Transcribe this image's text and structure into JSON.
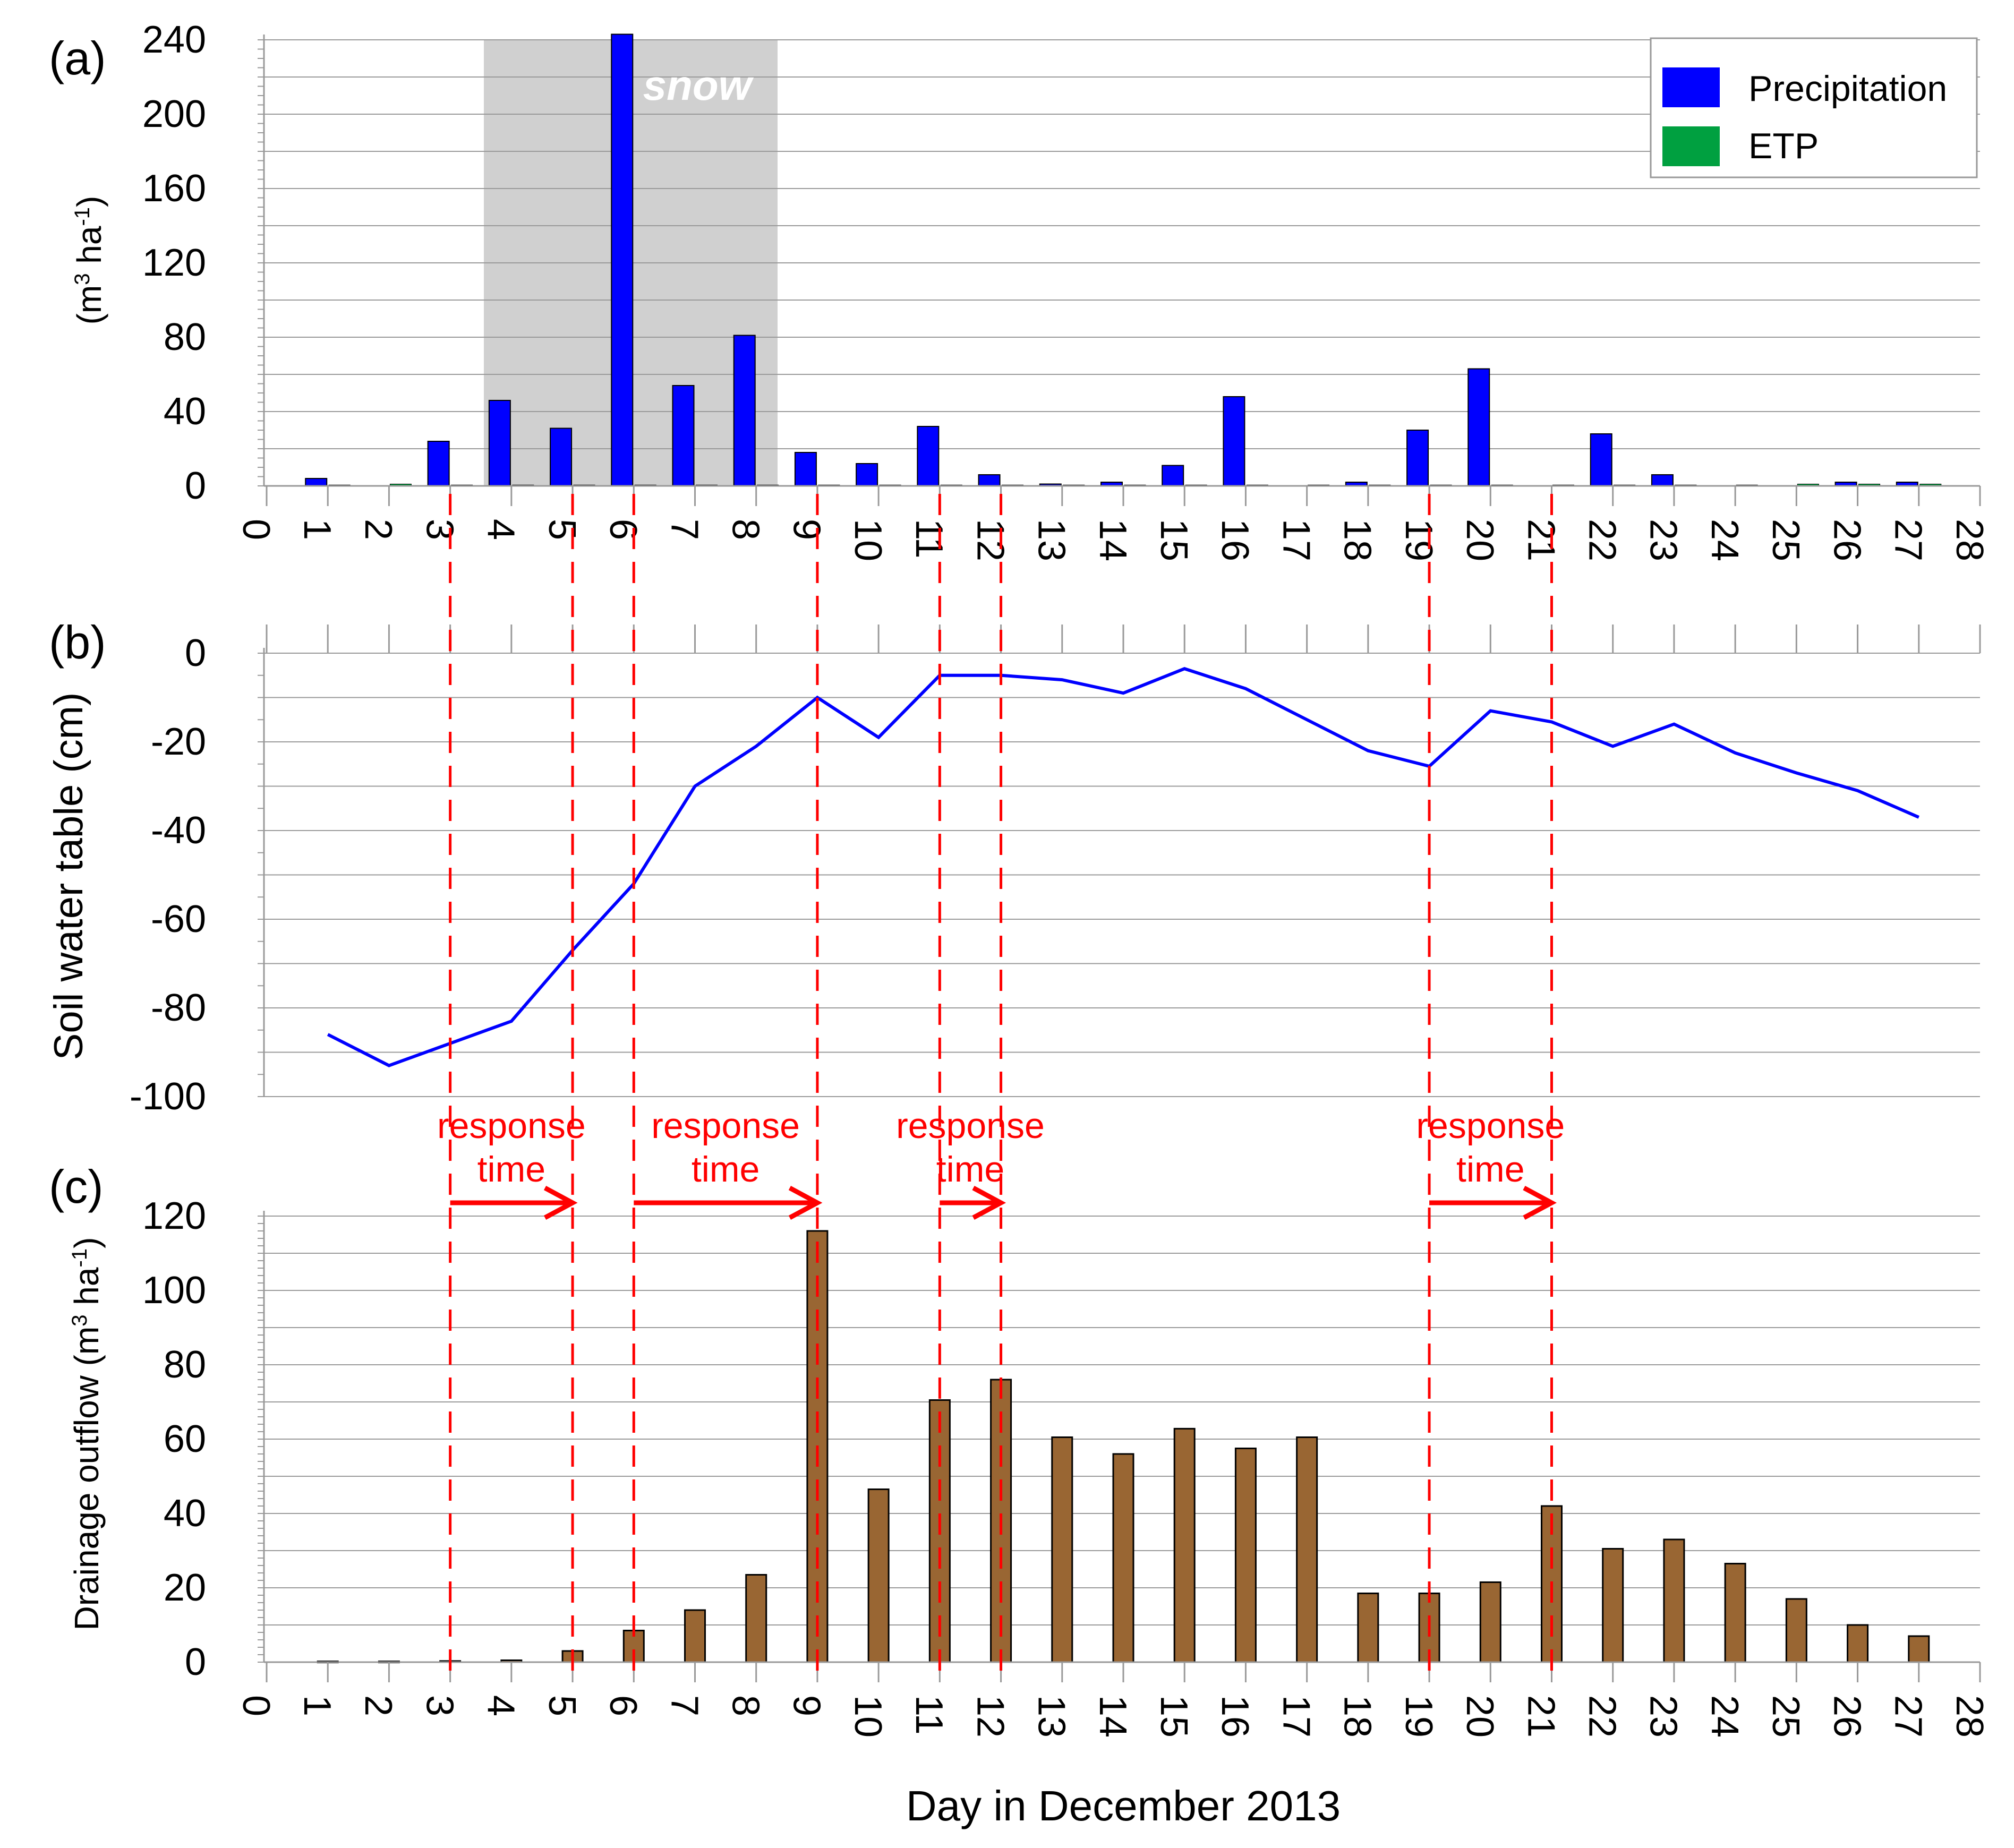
{
  "chart_data": [
    {
      "panel_label": "(a)",
      "type": "bar",
      "ylabel_main": "(m",
      "ylabel_sup1": "3",
      "ylabel_mid": " ha",
      "ylabel_sup2": "-1",
      "ylabel_end": ")",
      "ylim": [
        0,
        240
      ],
      "yticks": [
        0,
        40,
        80,
        120,
        160,
        200,
        240
      ],
      "xlim": [
        0,
        28
      ],
      "xticks": [
        0,
        1,
        2,
        3,
        4,
        5,
        6,
        7,
        8,
        9,
        10,
        11,
        12,
        13,
        14,
        15,
        16,
        17,
        18,
        19,
        20,
        21,
        22,
        23,
        24,
        25,
        26,
        27,
        28
      ],
      "shaded_region": {
        "label": "snow",
        "x_start": 3.55,
        "x_end": 8.35
      },
      "legend": {
        "position": "top-right",
        "entries": [
          "Precipitation",
          "ETP"
        ]
      },
      "series": [
        {
          "name": "Precipitation",
          "color": "#0000ff",
          "x": [
            1,
            2,
            3,
            4,
            5,
            6,
            7,
            8,
            9,
            10,
            11,
            12,
            13,
            14,
            15,
            16,
            17,
            18,
            19,
            20,
            21,
            22,
            23,
            24,
            25,
            26,
            27
          ],
          "values": [
            4,
            0,
            24,
            46,
            31,
            243,
            54,
            81,
            18,
            12,
            32,
            6,
            1,
            2,
            11,
            48,
            0,
            2,
            30,
            63,
            0,
            28,
            6,
            0,
            0,
            2,
            2
          ]
        },
        {
          "name": "ETP",
          "color": "#00a040",
          "x": [
            1,
            2,
            3,
            4,
            5,
            6,
            7,
            8,
            9,
            10,
            11,
            12,
            13,
            14,
            15,
            16,
            17,
            18,
            19,
            20,
            21,
            22,
            23,
            24,
            25,
            26,
            27
          ],
          "values": [
            0.5,
            1,
            0.5,
            0.5,
            0.5,
            0.5,
            0.5,
            0.5,
            0.5,
            0.5,
            0.5,
            0.5,
            0.5,
            0.5,
            0.5,
            0.5,
            0.5,
            0.5,
            0.5,
            0.5,
            0.5,
            0.5,
            0.5,
            0.5,
            1,
            1,
            1
          ]
        }
      ]
    },
    {
      "panel_label": "(b)",
      "type": "line",
      "ylabel": "Soil water table (cm)",
      "ylim": [
        -100,
        0
      ],
      "yticks": [
        -100,
        -80,
        -60,
        -40,
        -20,
        0
      ],
      "xlim": [
        0,
        28
      ],
      "series": [
        {
          "name": "Soil water table",
          "color": "#0000ff",
          "x": [
            1,
            2,
            3,
            4,
            5,
            6,
            7,
            8,
            9,
            10,
            11,
            12,
            13,
            14,
            15,
            16,
            17,
            18,
            19,
            20,
            21,
            22,
            23,
            24,
            25,
            26,
            27
          ],
          "values": [
            -86,
            -93,
            -88,
            -83,
            -67,
            -52,
            -30,
            -21,
            -10,
            -19,
            -5,
            -5,
            -6,
            -9,
            -3.5,
            -8,
            -15,
            -22,
            -25.5,
            -13,
            -15.5,
            -21,
            -16,
            -22.5,
            -27,
            -31,
            -37
          ]
        }
      ]
    },
    {
      "panel_label": "(c)",
      "type": "bar",
      "ylabel_main": "Drainage outflow (m",
      "ylabel_sup1": "3",
      "ylabel_mid": " ha",
      "ylabel_sup2": "-1",
      "ylabel_end": ")",
      "ylim": [
        0,
        120
      ],
      "yticks": [
        0,
        20,
        40,
        60,
        80,
        100,
        120
      ],
      "xlim": [
        0,
        28
      ],
      "xticks": [
        0,
        1,
        2,
        3,
        4,
        5,
        6,
        7,
        8,
        9,
        10,
        11,
        12,
        13,
        14,
        15,
        16,
        17,
        18,
        19,
        20,
        21,
        22,
        23,
        24,
        25,
        26,
        27,
        28
      ],
      "xlabel": "Day in December 2013",
      "series": [
        {
          "name": "Drainage outflow",
          "color": "#996633",
          "x": [
            1,
            2,
            3,
            4,
            5,
            6,
            7,
            8,
            9,
            10,
            11,
            12,
            13,
            14,
            15,
            16,
            17,
            18,
            19,
            20,
            21,
            22,
            23,
            24,
            25,
            26,
            27
          ],
          "values": [
            0.2,
            0.2,
            0.3,
            0.5,
            3,
            8.5,
            14,
            23.5,
            116,
            46.5,
            70.5,
            76,
            60.5,
            56,
            62.8,
            57.5,
            60.5,
            18.5,
            18.5,
            21.5,
            42,
            30.5,
            33,
            26.5,
            17,
            10,
            7
          ]
        }
      ]
    }
  ],
  "annotations": {
    "response_time_line1": "response",
    "response_time_line2": "time",
    "dashed_lines_x": [
      3,
      5,
      6,
      9,
      11,
      12,
      19,
      21
    ],
    "arrows": [
      [
        3,
        5
      ],
      [
        6,
        9
      ],
      [
        11,
        12
      ],
      [
        19,
        21
      ]
    ],
    "color": "#ff0000"
  }
}
